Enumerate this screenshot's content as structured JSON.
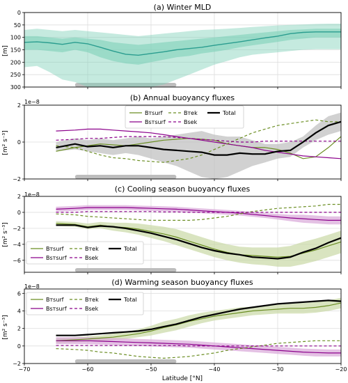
{
  "xaxis": {
    "label": "Latitude [°N]",
    "range": [
      -70,
      -20
    ],
    "ticks": [
      -70,
      -60,
      -50,
      -40,
      -30,
      -20
    ],
    "tick_labels": [
      "−70",
      "−60",
      "−50",
      "−40",
      "−30",
      "−20"
    ]
  },
  "colors": {
    "green": "#2a9d8f",
    "green_fill": "#7fd1b9",
    "olive": "#6b8e23",
    "olive_fill": "#c9d9a5",
    "purple": "#8b008b",
    "purple_fill": "#d9a7d9",
    "black": "#000000",
    "gray_fill": "#bdbdbd"
  },
  "chart_data": [
    {
      "type": "line",
      "title": "(a) Winter MLD",
      "ylabel": "[m]",
      "ylim": [
        300,
        0
      ],
      "yticks": [
        0,
        50,
        100,
        150,
        200,
        250,
        300
      ],
      "ytick_labels": [
        "0",
        "50",
        "100",
        "150",
        "200",
        "250",
        "300"
      ],
      "x": [
        -70,
        -68,
        -66,
        -64,
        -62,
        -60,
        -58,
        -56,
        -54,
        -52,
        -50,
        -48,
        -46,
        -44,
        -42,
        -40,
        -38,
        -36,
        -34,
        -32,
        -30,
        -28,
        -26,
        -24,
        -22,
        -20
      ],
      "series": [
        {
          "values": [
            120,
            118,
            122,
            128,
            120,
            126,
            140,
            155,
            168,
            172,
            165,
            158,
            150,
            145,
            140,
            132,
            125,
            118,
            110,
            102,
            95,
            85,
            80,
            78,
            78,
            78
          ]
        }
      ],
      "bands": [
        {
          "lower": [
            95,
            95,
            100,
            105,
            100,
            105,
            110,
            120,
            125,
            130,
            125,
            120,
            115,
            110,
            105,
            100,
            95,
            90,
            85,
            80,
            75,
            70,
            68,
            65,
            65,
            65
          ],
          "upper": [
            150,
            150,
            155,
            160,
            150,
            160,
            180,
            195,
            205,
            210,
            200,
            190,
            180,
            175,
            165,
            158,
            150,
            140,
            132,
            125,
            118,
            110,
            105,
            100,
            100,
            100
          ]
        },
        {
          "lower": [
            70,
            65,
            70,
            75,
            70,
            75,
            80,
            85,
            90,
            95,
            90,
            85,
            80,
            75,
            70,
            68,
            65,
            62,
            58,
            55,
            52,
            50,
            48,
            46,
            45,
            45
          ],
          "upper": [
            220,
            215,
            240,
            270,
            280,
            300,
            300,
            300,
            300,
            300,
            300,
            290,
            270,
            250,
            230,
            210,
            195,
            180,
            170,
            165,
            160,
            155,
            150,
            148,
            148,
            148
          ]
        }
      ],
      "shaded_span": [
        -62,
        -46
      ]
    },
    {
      "type": "line",
      "title": "(b) Annual buoyancy fluxes",
      "ylabel": "[m² s⁻³]",
      "scale_label": "1e−8",
      "ylim": [
        -2,
        2
      ],
      "yticks": [
        -2,
        0,
        2
      ],
      "ytick_labels": [
        "−2",
        "0",
        "2"
      ],
      "x": [
        -65,
        -62,
        -60,
        -58,
        -56,
        -54,
        -52,
        -50,
        -48,
        -46,
        -44,
        -42,
        -40,
        -38,
        -36,
        -34,
        -32,
        -30,
        -28,
        -26,
        -24,
        -22,
        -20
      ],
      "legend": [
        "Bᴛsurf",
        "Bsᴛsurf",
        "Bᴛek",
        "Bsek",
        "Total"
      ],
      "series": [
        {
          "name": "Bᴛsurf",
          "values": [
            -0.5,
            -0.3,
            -0.2,
            -0.1,
            -0.15,
            -0.2,
            -0.1,
            0.0,
            0.1,
            0.15,
            0.2,
            0.15,
            0.1,
            -0.1,
            -0.2,
            -0.3,
            -0.3,
            -0.4,
            -0.6,
            -0.9,
            -0.8,
            -0.3,
            0.3
          ]
        },
        {
          "name": "Bsᴛsurf",
          "values": [
            0.6,
            0.65,
            0.7,
            0.7,
            0.65,
            0.6,
            0.55,
            0.5,
            0.4,
            0.3,
            0.2,
            0.1,
            0.0,
            -0.1,
            -0.2,
            -0.3,
            -0.45,
            -0.55,
            -0.65,
            -0.75,
            -0.8,
            -0.85,
            -0.9
          ]
        },
        {
          "name": "Bᴛek",
          "values": [
            -0.2,
            -0.3,
            -0.5,
            -0.7,
            -0.85,
            -0.9,
            -1.0,
            -1.05,
            -1.1,
            -1.0,
            -0.9,
            -0.7,
            -0.4,
            -0.1,
            0.2,
            0.5,
            0.7,
            0.9,
            1.0,
            1.1,
            1.2,
            1.1,
            1.1
          ]
        },
        {
          "name": "Bsek",
          "values": [
            0.1,
            0.15,
            0.2,
            0.2,
            0.25,
            0.3,
            0.3,
            0.3,
            0.3,
            0.25,
            0.2,
            0.15,
            0.1,
            0.05,
            0.0,
            0.0,
            0.05,
            0.05,
            0.05,
            0.05,
            0.05,
            0.05,
            0.05
          ]
        },
        {
          "name": "Total",
          "values": [
            -0.3,
            -0.1,
            -0.25,
            -0.2,
            -0.3,
            -0.2,
            -0.2,
            -0.3,
            -0.4,
            -0.45,
            -0.5,
            -0.55,
            -0.7,
            -0.7,
            -0.6,
            -0.65,
            -0.65,
            -0.5,
            -0.45,
            0.0,
            0.5,
            0.9,
            1.1
          ]
        }
      ],
      "band_total": {
        "lower": [
          -0.5,
          -0.4,
          -0.5,
          -0.6,
          -0.7,
          -0.6,
          -0.7,
          -0.9,
          -1.1,
          -1.3,
          -1.6,
          -1.9,
          -2.0,
          -1.9,
          -1.6,
          -1.3,
          -1.1,
          -0.9,
          -0.8,
          -0.3,
          0.1,
          0.4,
          0.6
        ],
        "upper": [
          0.0,
          0.2,
          0.1,
          0.2,
          0.1,
          0.2,
          0.3,
          0.2,
          0.3,
          0.4,
          0.5,
          0.6,
          0.4,
          0.3,
          0.3,
          0.1,
          -0.1,
          -0.1,
          0.0,
          0.3,
          0.9,
          1.4,
          1.6
        ]
      },
      "shaded_span": [
        -62,
        -46
      ]
    },
    {
      "type": "line",
      "title": "(c) Cooling season buoyancy fluxes",
      "ylabel": "[m² s⁻³]",
      "scale_label": "1e−8",
      "ylim": [
        -7.5,
        2
      ],
      "yticks": [
        -6,
        -4,
        -2,
        0,
        2
      ],
      "ytick_labels": [
        "−6",
        "−4",
        "−2",
        "0",
        "2"
      ],
      "x": [
        -65,
        -62,
        -60,
        -58,
        -56,
        -54,
        -52,
        -50,
        -48,
        -46,
        -44,
        -42,
        -40,
        -38,
        -36,
        -34,
        -32,
        -30,
        -28,
        -26,
        -24,
        -22,
        -20
      ],
      "legend": [
        "Bᴛsurf",
        "Bsᴛsurf",
        "Bᴛek",
        "Bsek",
        "Total"
      ],
      "series": [
        {
          "name": "Bᴛsurf",
          "values": [
            -1.4,
            -1.5,
            -1.8,
            -1.6,
            -1.8,
            -1.9,
            -2.1,
            -2.4,
            -2.7,
            -3.1,
            -3.6,
            -4.1,
            -4.6,
            -5.0,
            -5.3,
            -5.4,
            -5.5,
            -5.6,
            -5.5,
            -5.1,
            -4.7,
            -4.2,
            -3.7
          ]
        },
        {
          "name": "Bsᴛsurf",
          "values": [
            0.4,
            0.5,
            0.6,
            0.6,
            0.6,
            0.6,
            0.55,
            0.5,
            0.45,
            0.4,
            0.3,
            0.2,
            0.1,
            0.0,
            -0.1,
            -0.25,
            -0.4,
            -0.55,
            -0.7,
            -0.8,
            -0.9,
            -1.0,
            -1.0
          ]
        },
        {
          "name": "Bᴛek",
          "values": [
            -0.2,
            -0.3,
            -0.5,
            -0.6,
            -0.7,
            -0.8,
            -0.9,
            -1.0,
            -1.0,
            -1.0,
            -1.0,
            -0.9,
            -0.7,
            -0.5,
            -0.2,
            0.1,
            0.3,
            0.5,
            0.6,
            0.7,
            0.8,
            1.0,
            1.0
          ]
        },
        {
          "name": "Bsek",
          "values": [
            0.0,
            0.0,
            0.1,
            0.1,
            0.1,
            0.1,
            0.1,
            0.1,
            0.05,
            0.05,
            0.0,
            0.0,
            0.0,
            0.0,
            0.0,
            0.0,
            0.0,
            0.0,
            0.0,
            0.0,
            0.0,
            0.0,
            0.0
          ]
        },
        {
          "name": "Total",
          "values": [
            -1.6,
            -1.6,
            -1.9,
            -1.7,
            -1.8,
            -2.0,
            -2.3,
            -2.6,
            -3.0,
            -3.4,
            -3.9,
            -4.4,
            -4.8,
            -5.1,
            -5.3,
            -5.6,
            -5.7,
            -5.8,
            -5.6,
            -5.0,
            -4.5,
            -3.8,
            -3.2
          ]
        }
      ],
      "band_olive": {
        "lower": [
          -1.7,
          -1.8,
          -2.1,
          -2.0,
          -2.3,
          -2.5,
          -2.8,
          -3.2,
          -3.6,
          -4.1,
          -4.6,
          -5.1,
          -5.6,
          -6.0,
          -6.3,
          -6.5,
          -6.6,
          -6.8,
          -6.8,
          -6.5,
          -6.1,
          -5.6,
          -5.1
        ],
        "upper": [
          -1.1,
          -1.2,
          -1.4,
          -1.2,
          -1.3,
          -1.3,
          -1.4,
          -1.6,
          -1.8,
          -2.1,
          -2.6,
          -3.1,
          -3.6,
          -4.0,
          -4.3,
          -4.4,
          -4.4,
          -4.4,
          -4.2,
          -3.7,
          -3.3,
          -2.8,
          -2.3
        ]
      },
      "band_purple": {
        "lower": [
          0.1,
          0.2,
          0.3,
          0.3,
          0.3,
          0.3,
          0.25,
          0.2,
          0.15,
          0.1,
          0.0,
          -0.1,
          -0.2,
          -0.3,
          -0.4,
          -0.55,
          -0.7,
          -0.9,
          -1.1,
          -1.3,
          -1.4,
          -1.5,
          -1.5
        ],
        "upper": [
          0.7,
          0.8,
          0.9,
          0.9,
          0.9,
          0.9,
          0.85,
          0.8,
          0.75,
          0.7,
          0.6,
          0.5,
          0.4,
          0.3,
          0.2,
          0.05,
          -0.1,
          -0.2,
          -0.3,
          -0.3,
          -0.4,
          -0.5,
          -0.5
        ]
      },
      "shaded_span": [
        -62,
        -46
      ]
    },
    {
      "type": "line",
      "title": "(d) Warming season buoyancy fluxes",
      "ylabel": "[m² s⁻³]",
      "scale_label": "1e−8",
      "ylim": [
        -2,
        6.5
      ],
      "yticks": [
        -2,
        0,
        2,
        4,
        6
      ],
      "ytick_labels": [
        "−2",
        "0",
        "2",
        "4",
        "6"
      ],
      "x": [
        -65,
        -62,
        -60,
        -58,
        -56,
        -54,
        -52,
        -50,
        -48,
        -46,
        -44,
        -42,
        -40,
        -38,
        -36,
        -34,
        -32,
        -30,
        -28,
        -26,
        -24,
        -22,
        -20
      ],
      "legend": [
        "Bᴛsurf",
        "Bsᴛsurf",
        "Bᴛek",
        "Bsek",
        "Total"
      ],
      "series": [
        {
          "name": "Bᴛsurf",
          "values": [
            0.6,
            0.7,
            0.8,
            0.9,
            1.0,
            1.2,
            1.4,
            1.7,
            2.1,
            2.4,
            2.8,
            3.1,
            3.4,
            3.6,
            3.8,
            4.0,
            4.1,
            4.2,
            4.3,
            4.3,
            4.4,
            4.6,
            4.9
          ]
        },
        {
          "name": "Bsᴛsurf",
          "values": [
            0.6,
            0.6,
            0.6,
            0.55,
            0.5,
            0.45,
            0.4,
            0.35,
            0.3,
            0.25,
            0.2,
            0.1,
            0.0,
            -0.1,
            -0.2,
            -0.3,
            -0.4,
            -0.5,
            -0.6,
            -0.7,
            -0.75,
            -0.8,
            -0.8
          ]
        },
        {
          "name": "Bᴛek",
          "values": [
            -0.3,
            -0.4,
            -0.5,
            -0.7,
            -0.8,
            -1.0,
            -1.2,
            -1.3,
            -1.4,
            -1.3,
            -1.2,
            -1.0,
            -0.8,
            -0.5,
            -0.3,
            -0.1,
            0.1,
            0.3,
            0.4,
            0.5,
            0.6,
            0.6,
            0.6
          ]
        },
        {
          "name": "Bsek",
          "values": [
            0.05,
            0.05,
            0.05,
            0.05,
            0.05,
            0.05,
            0.05,
            0.05,
            0.05,
            0.05,
            0.0,
            0.0,
            0.0,
            0.0,
            0.0,
            0.0,
            0.0,
            0.0,
            0.0,
            0.0,
            0.0,
            0.0,
            0.0
          ]
        },
        {
          "name": "Total",
          "values": [
            1.2,
            1.2,
            1.3,
            1.4,
            1.5,
            1.6,
            1.7,
            1.9,
            2.2,
            2.5,
            2.9,
            3.3,
            3.6,
            3.9,
            4.2,
            4.4,
            4.6,
            4.8,
            4.9,
            5.0,
            5.1,
            5.2,
            5.1
          ]
        }
      ],
      "band_olive": {
        "lower": [
          0.3,
          0.4,
          0.5,
          0.6,
          0.7,
          0.8,
          1.0,
          1.2,
          1.5,
          1.8,
          2.2,
          2.6,
          2.9,
          3.1,
          3.3,
          3.5,
          3.6,
          3.7,
          3.7,
          3.7,
          3.8,
          4.0,
          4.3
        ],
        "upper": [
          0.9,
          1.0,
          1.1,
          1.2,
          1.4,
          1.6,
          1.9,
          2.3,
          2.8,
          3.1,
          3.5,
          3.8,
          4.0,
          4.2,
          4.4,
          4.5,
          4.6,
          4.7,
          4.8,
          4.9,
          5.0,
          5.2,
          5.5
        ]
      },
      "band_purple": {
        "lower": [
          0.2,
          0.2,
          0.2,
          0.15,
          0.1,
          0.05,
          0.0,
          -0.05,
          -0.1,
          -0.15,
          -0.2,
          -0.3,
          -0.4,
          -0.5,
          -0.6,
          -0.7,
          -0.8,
          -0.9,
          -1.0,
          -1.1,
          -1.2,
          -1.2,
          -1.2
        ],
        "upper": [
          1.0,
          1.0,
          1.0,
          0.95,
          0.9,
          0.85,
          0.8,
          0.75,
          0.7,
          0.65,
          0.6,
          0.5,
          0.4,
          0.3,
          0.2,
          0.1,
          0.0,
          -0.1,
          -0.2,
          -0.3,
          -0.35,
          -0.4,
          -0.4
        ]
      },
      "shaded_span": [
        -62,
        -46
      ]
    }
  ]
}
